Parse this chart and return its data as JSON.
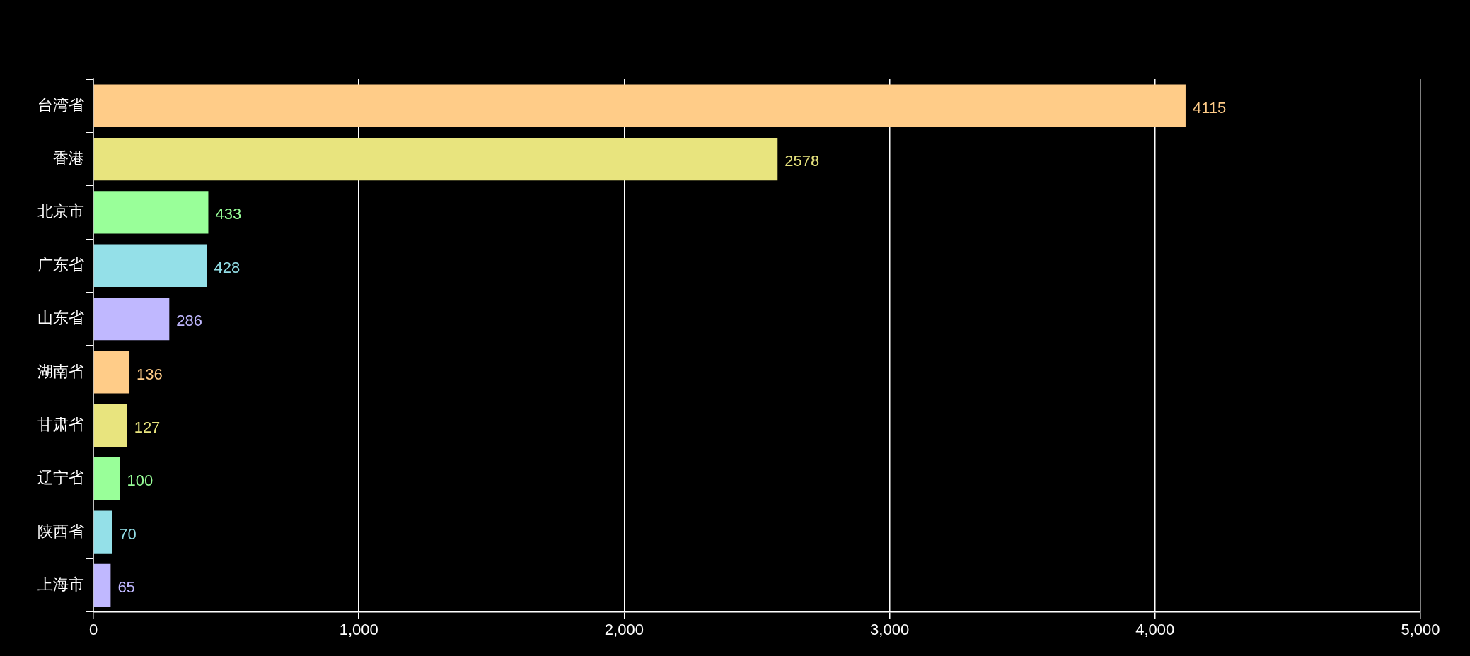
{
  "chart_data": {
    "type": "bar",
    "orientation": "horizontal",
    "categories": [
      "台湾省",
      "香港",
      "北京市",
      "广东省",
      "山东省",
      "湖南省",
      "甘肃省",
      "辽宁省",
      "陕西省",
      "上海市"
    ],
    "values": [
      4115,
      2578,
      433,
      428,
      286,
      136,
      127,
      100,
      70,
      65
    ],
    "colors": [
      "#ffcc88",
      "#e8e47e",
      "#99ff99",
      "#94e0e8",
      "#c0b8ff",
      "#ffcc88",
      "#e8e47e",
      "#99ff99",
      "#94e0e8",
      "#c0b8ff"
    ],
    "xlim": [
      0,
      5000
    ],
    "xticks": [
      {
        "value": 0,
        "label": "0"
      },
      {
        "value": 1000,
        "label": "1,000"
      },
      {
        "value": 2000,
        "label": "2,000"
      },
      {
        "value": 3000,
        "label": "3,000"
      },
      {
        "value": 4000,
        "label": "4,000"
      },
      {
        "value": 5000,
        "label": "5,000"
      }
    ],
    "grid": "x",
    "data_labels": true,
    "legend": false
  }
}
